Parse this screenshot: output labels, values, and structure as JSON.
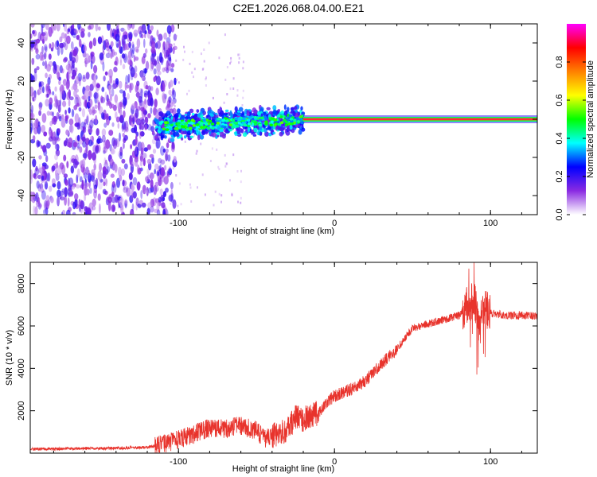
{
  "title": "C2E1.2026.068.04.00.E21",
  "chart_data": [
    {
      "type": "heatmap",
      "name": "spectrogram",
      "xlabel": "Height of straight line (km)",
      "ylabel": "Frequency (Hz)",
      "xlim": [
        -195,
        130
      ],
      "ylim": [
        -50,
        50
      ],
      "xticks": [
        -100,
        0,
        100
      ],
      "xtick_labels": [
        "-100",
        "0",
        "100"
      ],
      "yticks": [
        -40,
        -20,
        0,
        20,
        40
      ],
      "ytick_labels": [
        "-40",
        "-20",
        "0",
        "20",
        "40"
      ],
      "colorbar": {
        "label": "Normalized spectral amplitude",
        "range": [
          0,
          1
        ],
        "ticks": [
          0.0,
          0.2,
          0.4,
          0.6,
          0.8
        ],
        "tick_labels": [
          "0.0",
          "0.2",
          "0.4",
          "0.6",
          "0.8"
        ],
        "colors": [
          "#ffffff",
          "#8a2be2",
          "#0000ff",
          "#00ffff",
          "#00ff00",
          "#ffff00",
          "#ff8000",
          "#ff0000",
          "#ff00ff"
        ]
      },
      "regions": [
        {
          "description": "broadband noise",
          "x_range": [
            -195,
            -108
          ],
          "f_range": [
            -50,
            50
          ],
          "amplitude": 0.1
        },
        {
          "description": "signal band",
          "x_range": [
            -115,
            -20
          ],
          "f_range": [
            -8,
            8
          ],
          "amplitude": 0.35
        },
        {
          "description": "carrier line",
          "x_range": [
            -20,
            130
          ],
          "frequency": 0,
          "amplitude": 0.9
        }
      ]
    },
    {
      "type": "line",
      "name": "snr",
      "xlabel": "Height of straight line (km)",
      "ylabel": "SNR (10 * v/v)",
      "xlim": [
        -195,
        130
      ],
      "ylim": [
        0,
        9000
      ],
      "xticks": [
        -100,
        0,
        100
      ],
      "xtick_labels": [
        "-100",
        "0",
        "100"
      ],
      "yticks": [
        2000,
        4000,
        6000,
        8000
      ],
      "ytick_labels": [
        "2000",
        "4000",
        "6000",
        "8000"
      ],
      "color": "#e8332c",
      "series": [
        {
          "name": "SNR",
          "x": [
            -195,
            -180,
            -160,
            -140,
            -120,
            -110,
            -100,
            -90,
            -80,
            -70,
            -60,
            -50,
            -45,
            -40,
            -30,
            -25,
            -20,
            -15,
            -10,
            -5,
            0,
            10,
            20,
            30,
            40,
            50,
            60,
            70,
            80,
            85,
            90,
            92,
            95,
            100,
            110,
            120,
            130
          ],
          "y": [
            200,
            200,
            220,
            230,
            280,
            420,
            650,
            900,
            1200,
            1150,
            1300,
            1050,
            700,
            800,
            1100,
            1700,
            1600,
            1750,
            1900,
            2400,
            2700,
            3000,
            3400,
            4200,
            4900,
            5900,
            6100,
            6300,
            6500,
            7000,
            7200,
            6000,
            6900,
            6600,
            6500,
            6500,
            6450
          ]
        }
      ]
    }
  ]
}
